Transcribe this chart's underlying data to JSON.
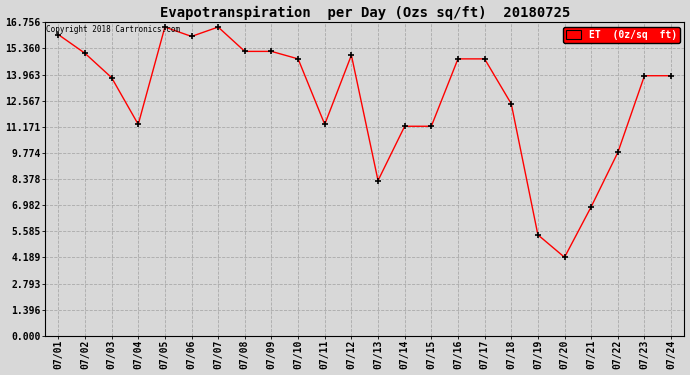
{
  "title": "Evapotranspiration  per Day (Ozs sq/ft)  20180725",
  "copyright": "Copyright 2018 Cartronics.com",
  "legend_label": "ET  (0z/sq  ft)",
  "dates": [
    "07/01",
    "07/02",
    "07/03",
    "07/04",
    "07/05",
    "07/06",
    "07/07",
    "07/08",
    "07/09",
    "07/10",
    "07/11",
    "07/12",
    "07/13",
    "07/14",
    "07/15",
    "07/16",
    "07/17",
    "07/18",
    "07/19",
    "07/20",
    "07/21",
    "07/22",
    "07/23",
    "07/24"
  ],
  "values": [
    16.1,
    15.1,
    13.8,
    11.3,
    16.5,
    16.0,
    16.5,
    15.2,
    15.2,
    14.8,
    11.3,
    15.0,
    8.3,
    11.2,
    11.2,
    14.8,
    14.8,
    12.4,
    5.4,
    4.2,
    6.9,
    9.8,
    13.9,
    13.9
  ],
  "line_color": "red",
  "marker_color": "black",
  "bg_color": "#d8d8d8",
  "plot_bg_color": "#d8d8d8",
  "grid_color": "#aaaaaa",
  "yticks": [
    0.0,
    1.396,
    2.793,
    4.189,
    5.585,
    6.982,
    8.378,
    9.774,
    11.171,
    12.567,
    13.963,
    15.36,
    16.756
  ],
  "ymin": 0.0,
  "ymax": 16.756,
  "legend_bg": "red",
  "legend_fg": "white"
}
